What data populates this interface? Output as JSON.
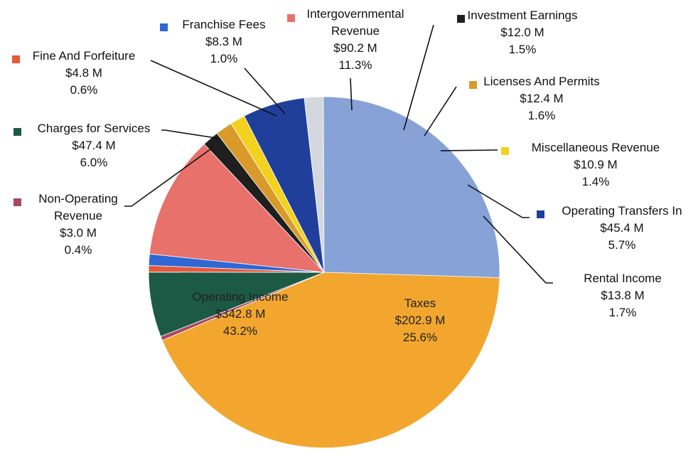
{
  "chart_data": {
    "type": "pie",
    "title": "",
    "legend": "none",
    "slices": [
      {
        "name": "Intergovernmental Revenue",
        "name_lines": [
          "Intergovernmental",
          "Revenue"
        ],
        "value": 90.2,
        "value_label": "$90.2 M",
        "percent": 11.3,
        "percent_label": "11.3%",
        "color": "#e8716b"
      },
      {
        "name": "Investment Earnings",
        "name_lines": [
          "Investment Earnings"
        ],
        "value": 12.0,
        "value_label": "$12.0 M",
        "percent": 1.5,
        "percent_label": "1.5%",
        "color": "#1f1f1f"
      },
      {
        "name": "Licenses And Permits",
        "name_lines": [
          "Licenses And Permits"
        ],
        "value": 12.4,
        "value_label": "$12.4 M",
        "percent": 1.6,
        "percent_label": "1.6%",
        "color": "#d99a2a"
      },
      {
        "name": "Miscellaneous Revenue",
        "name_lines": [
          "Miscellaneous Revenue"
        ],
        "value": 10.9,
        "value_label": "$10.9 M",
        "percent": 1.4,
        "percent_label": "1.4%",
        "color": "#f2d21f"
      },
      {
        "name": "Operating Transfers In",
        "name_lines": [
          "Operating Transfers In"
        ],
        "value": 45.4,
        "value_label": "$45.4 M",
        "percent": 5.7,
        "percent_label": "5.7%",
        "color": "#1f3f9b"
      },
      {
        "name": "Rental Income",
        "name_lines": [
          "Rental Income"
        ],
        "value": 13.8,
        "value_label": "$13.8 M",
        "percent": 1.7,
        "percent_label": "1.7%",
        "color": "#d4d8de"
      },
      {
        "name": "Taxes",
        "name_lines": [
          "Taxes"
        ],
        "value": 202.9,
        "value_label": "$202.9 M",
        "percent": 25.6,
        "percent_label": "25.6%",
        "color": "#86a2d6"
      },
      {
        "name": "Operating Income",
        "name_lines": [
          "Operating Income"
        ],
        "value": 342.8,
        "value_label": "$342.8 M",
        "percent": 43.2,
        "percent_label": "43.2%",
        "color": "#f2a62e"
      },
      {
        "name": "Non-Operating Revenue",
        "name_lines": [
          "Non-Operating",
          "Revenue"
        ],
        "value": 3.0,
        "value_label": "$3.0 M",
        "percent": 0.4,
        "percent_label": "0.4%",
        "color": "#a8495f"
      },
      {
        "name": "Charges for Services",
        "name_lines": [
          "Charges for Services"
        ],
        "value": 47.4,
        "value_label": "$47.4 M",
        "percent": 6.0,
        "percent_label": "6.0%",
        "color": "#1d5a45"
      },
      {
        "name": "Fine And Forfeiture",
        "name_lines": [
          "Fine And Forfeiture"
        ],
        "value": 4.8,
        "value_label": "$4.8 M",
        "percent": 0.6,
        "percent_label": "0.6%",
        "color": "#e35a3c"
      },
      {
        "name": "Franchise Fees",
        "name_lines": [
          "Franchise Fees"
        ],
        "value": 8.3,
        "value_label": "$8.3 M",
        "percent": 1.0,
        "percent_label": "1.0%",
        "color": "#2f67d4"
      }
    ]
  }
}
